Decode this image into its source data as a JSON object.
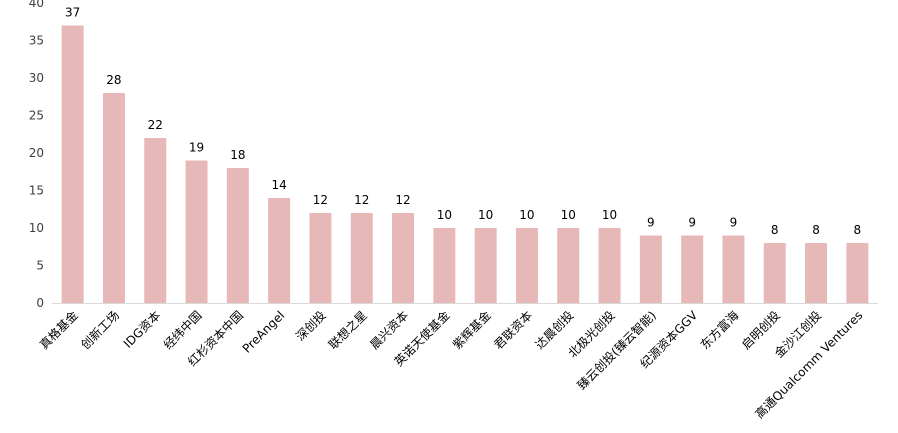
{
  "chart_data": {
    "type": "bar",
    "categories": [
      "真格基金",
      "创新工场",
      "IDG资本",
      "经纬中国",
      "红杉资本中国",
      "PreAngel",
      "深创投",
      "联想之星",
      "晨兴资本",
      "英诺天使基金",
      "紫辉基金",
      "君联资本",
      "达晨创投",
      "北极光创投",
      "臻云创投(臻云智能)",
      "纪源资本GGV",
      "东方富海",
      "启明创投",
      "金沙江创投",
      "高通Qualcomm Ventures"
    ],
    "values": [
      37,
      28,
      22,
      19,
      18,
      14,
      12,
      12,
      12,
      10,
      10,
      10,
      10,
      10,
      9,
      9,
      9,
      8,
      8,
      8
    ],
    "ylim": [
      0,
      40
    ],
    "yticks": [
      0,
      5,
      10,
      15,
      20,
      25,
      30,
      35,
      40
    ],
    "bar_color": "#e6b9b8",
    "grid": false,
    "title": "",
    "xlabel": "",
    "ylabel": ""
  }
}
